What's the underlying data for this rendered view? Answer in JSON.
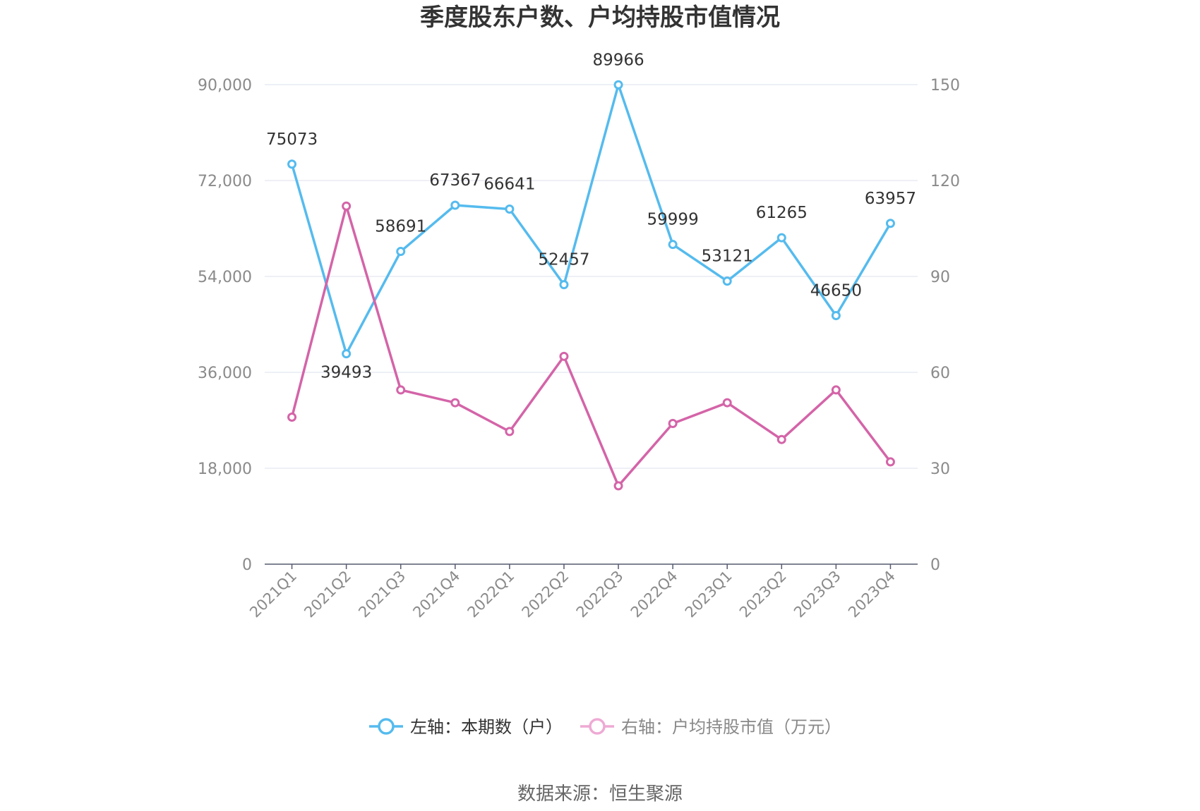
{
  "chart_data": {
    "type": "line",
    "title": "季度股东户数、户均持股市值情况",
    "categories": [
      "2021Q1",
      "2021Q2",
      "2021Q3",
      "2021Q4",
      "2022Q1",
      "2022Q2",
      "2022Q3",
      "2022Q4",
      "2023Q1",
      "2023Q2",
      "2023Q3",
      "2023Q4"
    ],
    "y_left": {
      "lim": [
        0,
        90000
      ],
      "ticks": [
        0,
        18000,
        36000,
        54000,
        72000,
        90000
      ],
      "tick_labels": [
        "0",
        "18,000",
        "36,000",
        "54,000",
        "72,000",
        "90,000"
      ]
    },
    "y_right": {
      "lim": [
        0,
        150
      ],
      "ticks": [
        0,
        30,
        60,
        90,
        120,
        150
      ],
      "tick_labels": [
        "0",
        "30",
        "60",
        "90",
        "120",
        "150"
      ]
    },
    "grid": true,
    "legend_position": "bottom",
    "series": [
      {
        "name": "左轴：本期数（户）",
        "axis": "left",
        "color": "#55bbee",
        "values": [
          75073,
          39493,
          58691,
          67367,
          66641,
          52457,
          89966,
          59999,
          53121,
          61265,
          46650,
          63957
        ],
        "labels": [
          "75073",
          "39493",
          "58691",
          "67367",
          "66641",
          "52457",
          "89966",
          "59999",
          "53121",
          "61265",
          "46650",
          "63957"
        ]
      },
      {
        "name": "右轴：户均持股市值（万元）",
        "axis": "right",
        "color": "#d464a8",
        "legend_color": "#eeaad4",
        "values": [
          46,
          112,
          54.5,
          50.5,
          41.5,
          65,
          24.5,
          44,
          50.5,
          39,
          54.5,
          32
        ]
      }
    ]
  },
  "source": "数据来源：恒生聚源"
}
